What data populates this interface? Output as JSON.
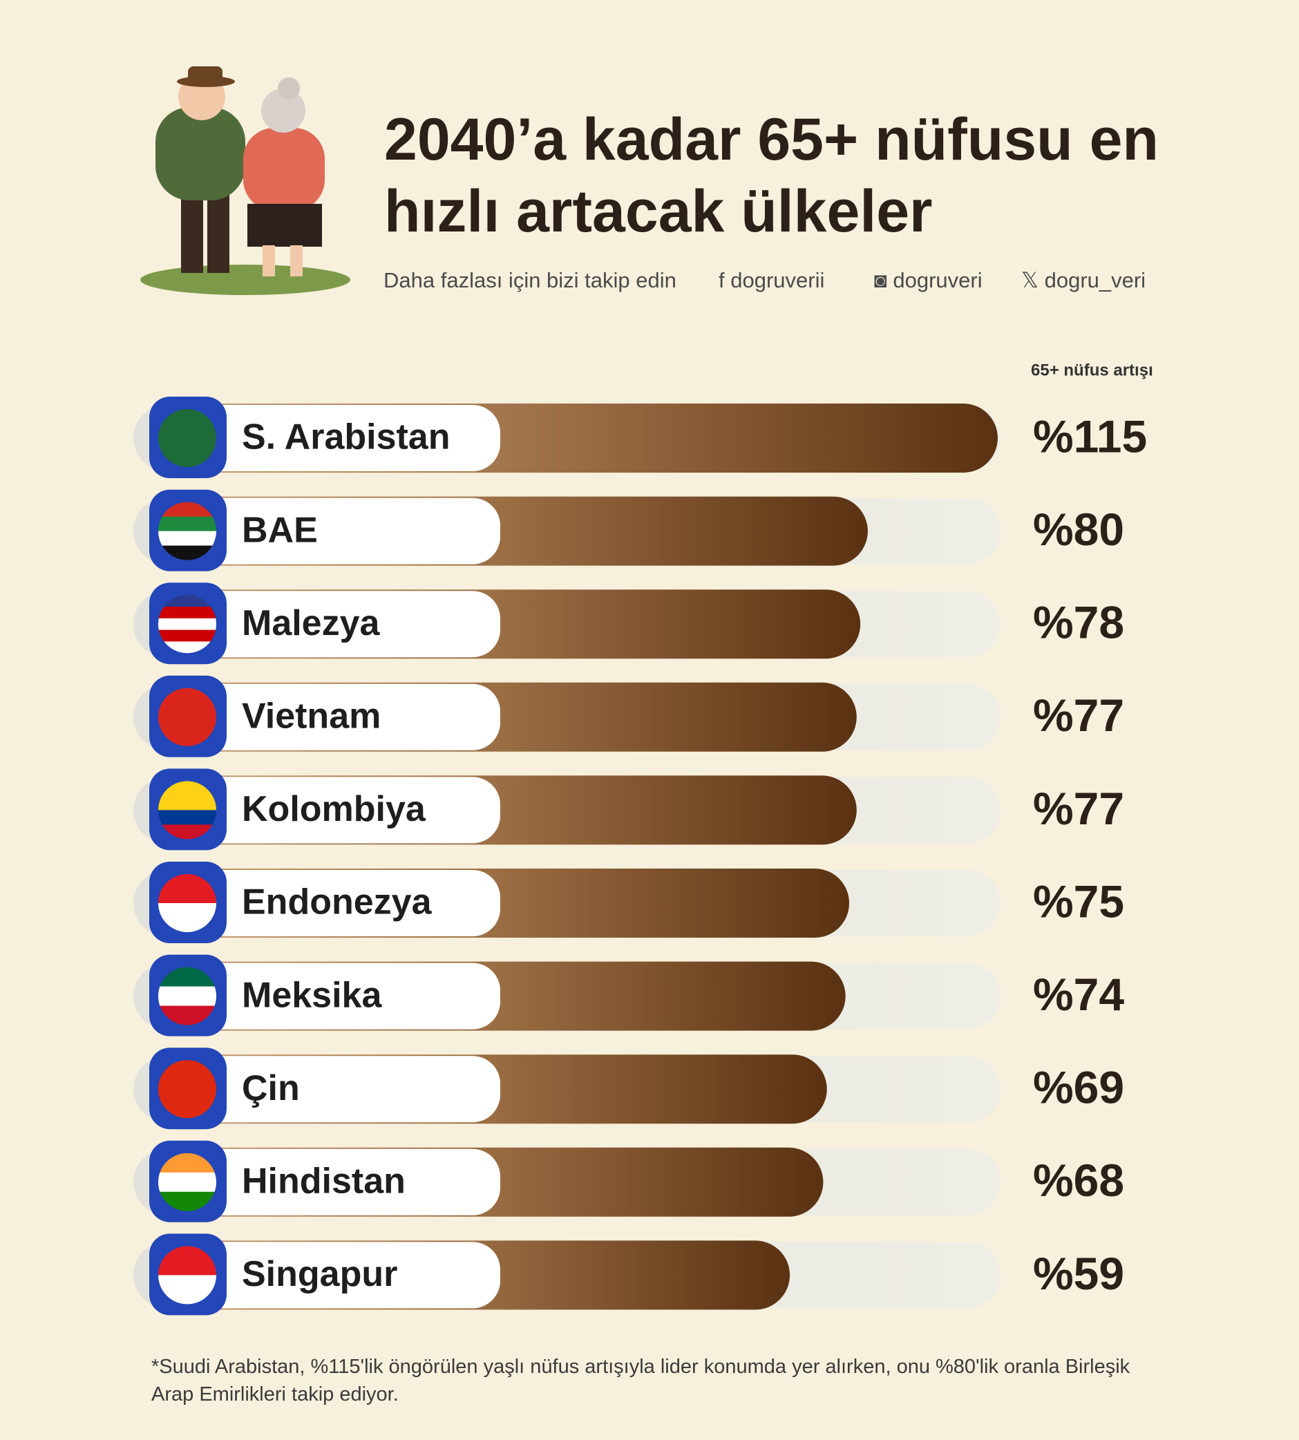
{
  "chart_data": {
    "type": "bar",
    "title": "2040’a kadar 65+ nüfusu en hızlı artacak ülkeler",
    "subtitle": "Daha fazlası için bizi takip edin",
    "socials": [
      "dogruverii",
      "dogruveri",
      "dogru_veri"
    ],
    "value_header": "65+ nüfus artışı",
    "categories": [
      "S. Arabistan",
      "BAE",
      "Malezya",
      "Vietnam",
      "Kolombiya",
      "Endonezya",
      "Meksika",
      "Çin",
      "Hindistan",
      "Singapur"
    ],
    "values": [
      115,
      80,
      78,
      77,
      77,
      75,
      74,
      69,
      68,
      59
    ],
    "value_labels": [
      "%115",
      "%80",
      "%78",
      "%77",
      "%77",
      "%75",
      "%74",
      "%69",
      "%68",
      "%59"
    ],
    "color": "#6b3f17",
    "note": "*Suudi Arabistan, %115'lik öngörülen yaşlı nüfus artışıyla lider konumda yer alırken, onu %80'lik oranla Birleşik Arap Emirlikleri takip ediyor."
  }
}
